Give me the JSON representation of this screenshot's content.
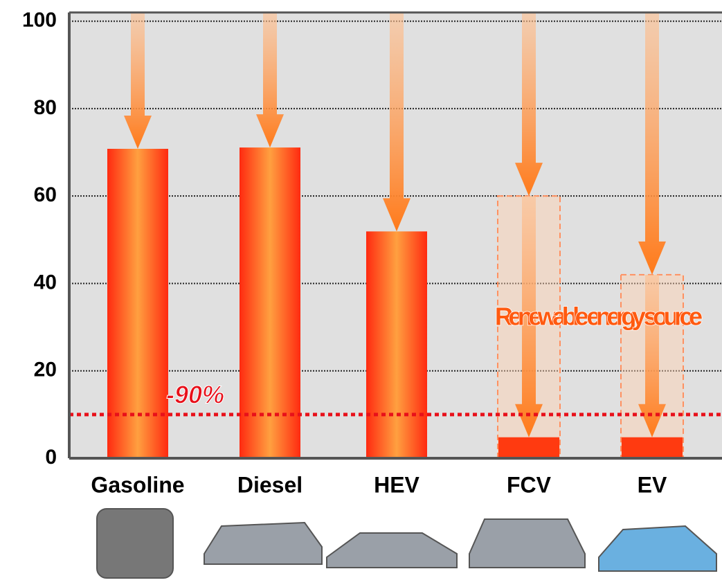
{
  "chart_data": {
    "type": "bar",
    "categories": [
      "Gasoline",
      "Diesel",
      "HEV",
      "FCV",
      "EV"
    ],
    "values": [
      70.8,
      71.1,
      51.9,
      4.8,
      4.8
    ],
    "renewable_values": [
      null,
      null,
      null,
      60,
      42
    ],
    "renewable_label": "Renewable energy source",
    "reference_line": 10,
    "reference_label": "-90%",
    "color": "#ff7a1a",
    "ylim": [
      0,
      102
    ],
    "yticks": [
      0,
      20,
      40,
      60,
      80,
      100
    ],
    "grid": true
  }
}
